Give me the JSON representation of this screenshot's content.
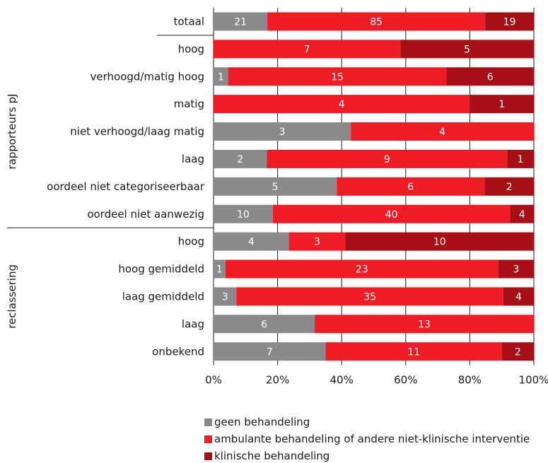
{
  "chart_data": {
    "type": "bar",
    "orientation": "horizontal",
    "stacked": "percent",
    "x_ticks": [
      "0%",
      "20%",
      "40%",
      "60%",
      "80%",
      "100%"
    ],
    "xlim": [
      0,
      100
    ],
    "grid": true,
    "legend_position": "bottom",
    "groups": [
      {
        "label": "",
        "rows": [
          "totaal"
        ]
      },
      {
        "label": "rapporteurs pJ",
        "rows": [
          "hoog",
          "verhoogd/matig hoog",
          "matig",
          "niet verhoogd/laag matig",
          "laag",
          "oordeel niet categoriseerbaar",
          "oordeel niet aanwezig"
        ]
      },
      {
        "label": "reclassering",
        "rows": [
          "hoog",
          "hoog gemiddeld",
          "laag gemiddeld",
          "laag",
          "onbekend"
        ]
      }
    ],
    "categories": [
      "totaal",
      "hoog",
      "verhoogd/matig hoog",
      "matig",
      "niet verhoogd/laag matig",
      "laag",
      "oordeel niet categoriseerbaar",
      "oordeel niet aanwezig",
      "hoog",
      "hoog gemiddeld",
      "laag gemiddeld",
      "laag",
      "onbekend"
    ],
    "series": [
      {
        "name": "geen behandeling",
        "color": "#8a8a8c",
        "values": [
          21,
          0,
          1,
          0,
          3,
          2,
          5,
          10,
          4,
          1,
          3,
          6,
          7
        ]
      },
      {
        "name": "ambulante behandeling of andere niet-klinische interventie",
        "color": "#ee1c25",
        "values": [
          85,
          7,
          15,
          4,
          4,
          9,
          6,
          40,
          3,
          23,
          35,
          13,
          11
        ]
      },
      {
        "name": "klinische behandeling",
        "color": "#a50f15",
        "values": [
          19,
          5,
          6,
          1,
          0,
          1,
          2,
          4,
          10,
          3,
          4,
          0,
          2
        ]
      }
    ]
  }
}
